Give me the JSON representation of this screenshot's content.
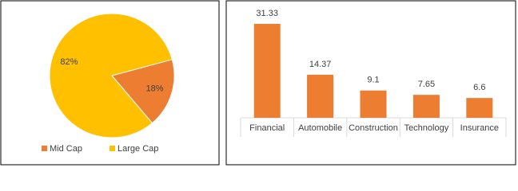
{
  "chart_data": [
    {
      "type": "pie",
      "categories": [
        "Mid Cap",
        "Large Cap"
      ],
      "values": [
        18,
        82
      ],
      "value_labels": [
        "18%",
        "82%"
      ],
      "colors": [
        "#ed7d31",
        "#ffc000"
      ],
      "legend": "bottom"
    },
    {
      "type": "bar",
      "categories": [
        "Financial",
        "Automobile",
        "Construction",
        "Technology",
        "Insurance"
      ],
      "values": [
        31.33,
        14.37,
        9.1,
        7.65,
        6.6
      ],
      "color": "#ed7d31"
    }
  ]
}
